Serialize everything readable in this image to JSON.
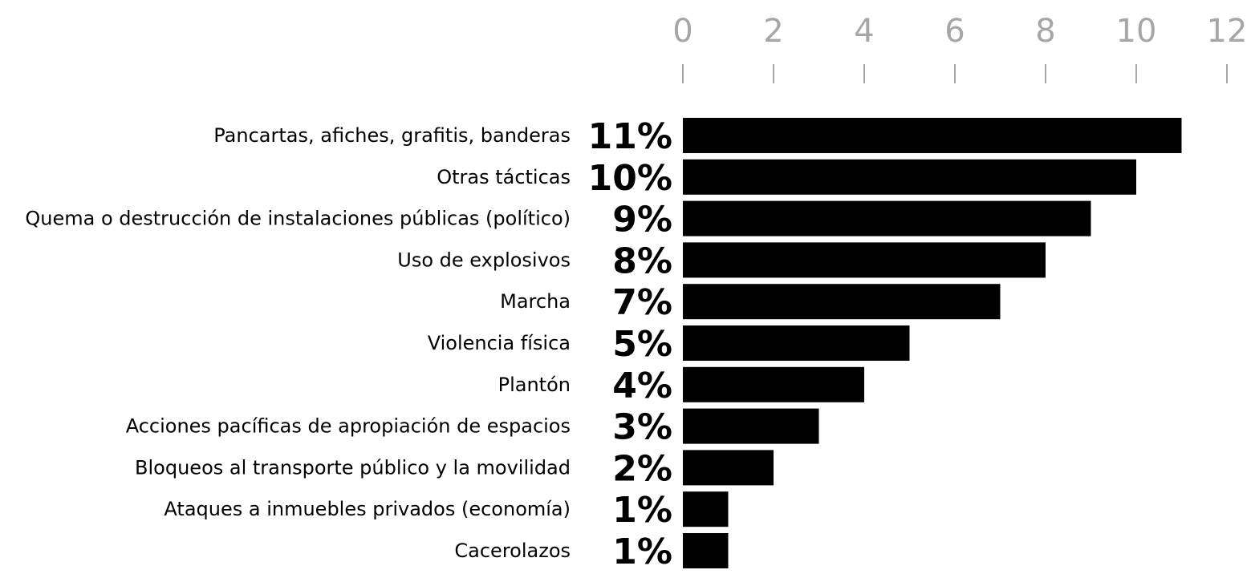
{
  "colors": {
    "bar": "#000000",
    "axis": "#a6a6a6",
    "text": "#000000"
  },
  "chart_data": {
    "type": "bar",
    "orientation": "horizontal",
    "title": "",
    "xlabel": "",
    "ylabel": "",
    "xlim": [
      0,
      12
    ],
    "x_ticks": [
      0,
      2,
      4,
      6,
      8,
      10,
      12
    ],
    "axis_position": "top",
    "grid": false,
    "legend": "none",
    "categories": [
      "Pancartas, afiches, grafitis, banderas",
      "Otras tácticas",
      "Quema o destrucción de instalaciones públicas (político)",
      "Uso de explosivos",
      "Marcha",
      "Violencia física",
      "Plantón",
      "Acciones pacíficas de apropiación de espacios",
      "Bloqueos al transporte público y la movilidad",
      "Ataques a inmuebles privados (economía)",
      "Cacerolazos"
    ],
    "values": [
      11,
      10,
      9,
      8,
      7,
      5,
      4,
      3,
      2,
      1,
      1
    ],
    "value_labels": [
      "11%",
      "10%",
      "9%",
      "8%",
      "7%",
      "5%",
      "4%",
      "3%",
      "2%",
      "1%",
      "1%"
    ]
  }
}
